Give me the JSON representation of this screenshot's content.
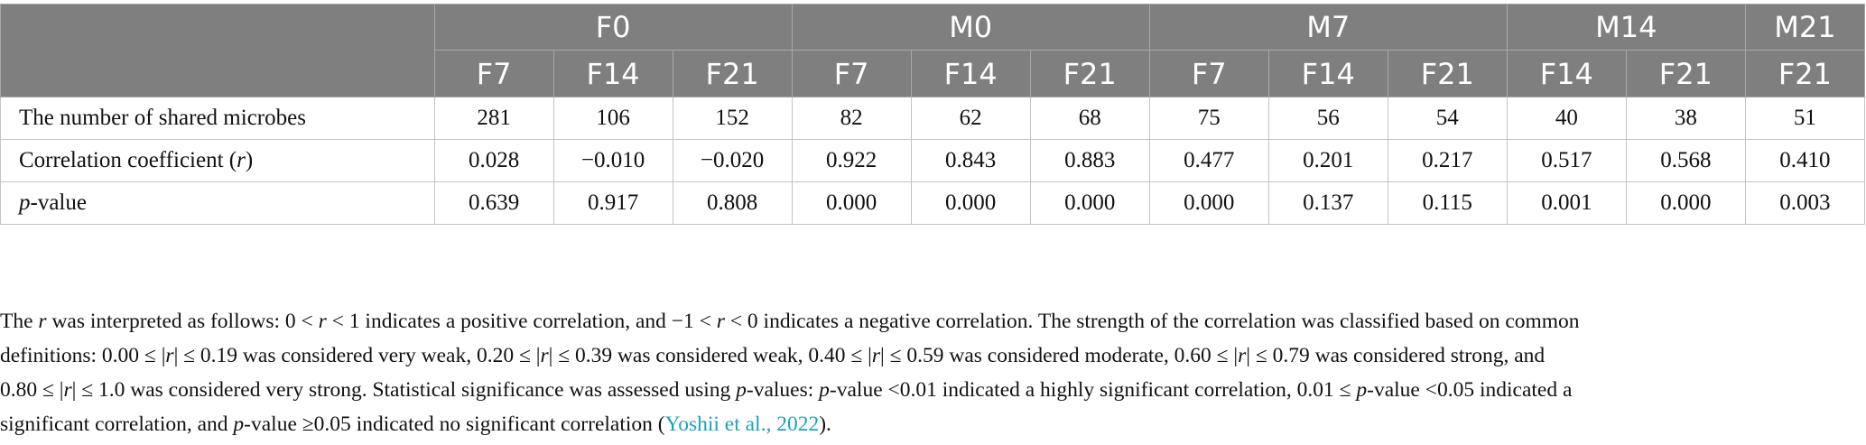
{
  "table": {
    "groups": [
      "F0",
      "M0",
      "M7",
      "M14",
      "M21"
    ],
    "subcols": [
      "F7",
      "F14",
      "F21",
      "F7",
      "F14",
      "F21",
      "F7",
      "F14",
      "F21",
      "F14",
      "F21",
      "F21"
    ],
    "rows": [
      {
        "label": "The number of shared microbes",
        "values": [
          "281",
          "106",
          "152",
          "82",
          "62",
          "68",
          "75",
          "56",
          "54",
          "40",
          "38",
          "51"
        ]
      },
      {
        "label_pre": "Correlation coefficient (",
        "label_var": "r",
        "label_post": ")",
        "values": [
          "0.028",
          "−0.010",
          "−0.020",
          "0.922",
          "0.843",
          "0.883",
          "0.477",
          "0.201",
          "0.217",
          "0.517",
          "0.568",
          "0.410"
        ]
      },
      {
        "label_var": "p",
        "label_post": "-value",
        "values": [
          "0.639",
          "0.917",
          "0.808",
          "0.000",
          "0.000",
          "0.000",
          "0.000",
          "0.137",
          "0.115",
          "0.001",
          "0.000",
          "0.003"
        ]
      }
    ]
  },
  "footnote": {
    "line1": [
      "The ",
      "r",
      " was interpreted as follows: 0 < ",
      "r",
      " < 1 indicates a positive correlation, and −1 < ",
      "r",
      " < 0 indicates a negative correlation. The strength of the correlation was classified based on common"
    ],
    "line2": [
      "definitions: 0.00 ≤ |",
      "r",
      "| ≤ 0.19 was considered very weak, 0.20 ≤ |",
      "r",
      "| ≤ 0.39 was considered weak, 0.40 ≤ |",
      "r",
      "| ≤ 0.59 was considered moderate, 0.60 ≤ |",
      "r",
      "| ≤ 0.79 was considered strong, and"
    ],
    "line3": [
      "0.80 ≤ |",
      "r",
      "| ≤ 1.0 was considered very strong. Statistical significance was assessed using ",
      "p",
      "-values: ",
      "p",
      "-value <0.01 indicated a highly significant correlation, 0.01 ≤ ",
      "p",
      "-value <0.05 indicated a"
    ],
    "line4": [
      "significant correlation, and ",
      "p",
      "-value ≥0.05 indicated no significant correlation ("
    ],
    "citation": "Yoshii et al., 2022",
    "end": ")."
  }
}
